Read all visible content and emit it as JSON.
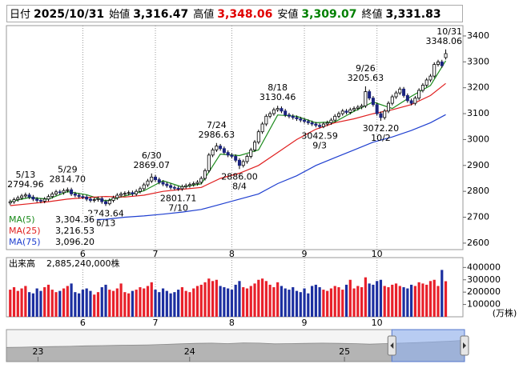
{
  "header": {
    "date_label": "日付",
    "date": "2025/10/31",
    "items": [
      {
        "label": "始値",
        "value": "3,316.47",
        "color": "#000000"
      },
      {
        "label": "高値",
        "value": "3,348.06",
        "color": "#e00000"
      },
      {
        "label": "安値",
        "value": "3,309.07",
        "color": "#008000"
      },
      {
        "label": "終値",
        "value": "3,331.83",
        "color": "#000000"
      }
    ]
  },
  "chart_data": [
    {
      "type": "candlestick",
      "up_color": "#ffffff",
      "down_color": "#1a237e",
      "xlim": [
        -1,
        118.5
      ],
      "ylim": [
        2575,
        3440
      ],
      "yticks": [
        2600,
        2700,
        2800,
        2900,
        3000,
        3100,
        3200,
        3300,
        3400
      ],
      "xticks": [
        {
          "value": 19,
          "label": "6"
        },
        {
          "value": 38,
          "label": "7"
        },
        {
          "value": 58,
          "label": "8"
        },
        {
          "value": 77,
          "label": "9"
        },
        {
          "value": 96,
          "label": "10"
        }
      ],
      "open": [
        2755,
        2760,
        2768,
        2775,
        2782,
        2786,
        2778,
        2770,
        2765,
        2762,
        2770,
        2780,
        2790,
        2798,
        2795,
        2803,
        2806,
        2790,
        2785,
        2780,
        2778,
        2770,
        2765,
        2768,
        2772,
        2760,
        2752,
        2765,
        2775,
        2785,
        2790,
        2792,
        2795,
        2790,
        2800,
        2810,
        2825,
        2840,
        2855,
        2845,
        2835,
        2828,
        2822,
        2815,
        2812,
        2810,
        2818,
        2822,
        2826,
        2830,
        2835,
        2850,
        2880,
        2940,
        2960,
        2975,
        2965,
        2950,
        2940,
        2935,
        2920,
        2900,
        2915,
        2935,
        2960,
        2990,
        3030,
        3060,
        3090,
        3100,
        3115,
        3120,
        3110,
        3095,
        3090,
        3085,
        3080,
        3075,
        3070,
        3065,
        3060,
        3055,
        3050,
        3060,
        3065,
        3075,
        3090,
        3100,
        3110,
        3105,
        3115,
        3120,
        3125,
        3130,
        3185,
        3160,
        3135,
        3100,
        3085,
        3110,
        3140,
        3165,
        3180,
        3195,
        3170,
        3150,
        3140,
        3160,
        3190,
        3210,
        3230,
        3245,
        3290,
        3300,
        3316.47
      ],
      "high": [
        2768,
        2776,
        2783,
        2790,
        2794.96,
        2794,
        2786,
        2778,
        2773,
        2778,
        2788,
        2798,
        2806,
        2806,
        2811,
        2814.7,
        2814,
        2798,
        2793,
        2788,
        2786,
        2778,
        2776,
        2780,
        2780,
        2768,
        2773,
        2783,
        2793,
        2798,
        2800,
        2803,
        2803,
        2808,
        2818,
        2833,
        2848,
        2869.07,
        2863,
        2853,
        2843,
        2836,
        2830,
        2823,
        2820,
        2826,
        2830,
        2834,
        2838,
        2843,
        2858,
        2888,
        2948,
        2968,
        2986.63,
        2983,
        2973,
        2958,
        2948,
        2943,
        2928,
        2923,
        2943,
        2968,
        2998,
        3038,
        3068,
        3098,
        3108,
        3123,
        3130.46,
        3128,
        3118,
        3103,
        3098,
        3093,
        3088,
        3083,
        3078,
        3073,
        3068,
        3063,
        3068,
        3073,
        3083,
        3098,
        3108,
        3118,
        3118,
        3123,
        3128,
        3133,
        3138,
        3205.63,
        3193,
        3168,
        3143,
        3108,
        3118,
        3148,
        3173,
        3188,
        3203,
        3203,
        3178,
        3158,
        3168,
        3198,
        3218,
        3238,
        3253,
        3298,
        3308,
        3308,
        3348.06
      ],
      "low": [
        2747,
        2752,
        2760,
        2767,
        2774,
        2770,
        2762,
        2757,
        2754,
        2754,
        2762,
        2772,
        2782,
        2787,
        2787,
        2795,
        2782,
        2777,
        2772,
        2770,
        2762,
        2757,
        2757,
        2760,
        2752,
        2743.64,
        2746,
        2757,
        2767,
        2777,
        2782,
        2784,
        2782,
        2782,
        2792,
        2802,
        2817,
        2832,
        2837,
        2827,
        2820,
        2814,
        2807,
        2804,
        2801.71,
        2802,
        2810,
        2814,
        2818,
        2822,
        2827,
        2842,
        2872,
        2932,
        2952,
        2957,
        2942,
        2932,
        2927,
        2912,
        2886,
        2892,
        2907,
        2927,
        2952,
        2982,
        3022,
        3052,
        3082,
        3092,
        3107,
        3102,
        3087,
        3082,
        3077,
        3072,
        3067,
        3062,
        3057,
        3052,
        3047,
        3042.59,
        3044,
        3052,
        3057,
        3067,
        3082,
        3092,
        3097,
        3097,
        3107,
        3112,
        3117,
        3122,
        3152,
        3127,
        3092,
        3072.2,
        3077,
        3102,
        3132,
        3157,
        3172,
        3162,
        3142,
        3132,
        3132,
        3152,
        3182,
        3202,
        3222,
        3237,
        3282,
        3277,
        3309.07
      ],
      "close": [
        2760,
        2768,
        2775,
        2782,
        2786,
        2778,
        2770,
        2765,
        2762,
        2770,
        2780,
        2790,
        2798,
        2795,
        2803,
        2806,
        2790,
        2785,
        2780,
        2778,
        2770,
        2765,
        2768,
        2772,
        2760,
        2752,
        2765,
        2775,
        2785,
        2790,
        2792,
        2795,
        2790,
        2800,
        2810,
        2825,
        2840,
        2855,
        2845,
        2835,
        2828,
        2822,
        2815,
        2812,
        2810,
        2818,
        2822,
        2826,
        2830,
        2835,
        2850,
        2880,
        2940,
        2960,
        2975,
        2965,
        2950,
        2940,
        2935,
        2920,
        2900,
        2915,
        2935,
        2960,
        2990,
        3030,
        3060,
        3090,
        3100,
        3115,
        3120,
        3110,
        3095,
        3090,
        3085,
        3080,
        3075,
        3070,
        3065,
        3060,
        3055,
        3050,
        3060,
        3065,
        3075,
        3090,
        3100,
        3110,
        3105,
        3115,
        3120,
        3125,
        3130,
        3185,
        3160,
        3135,
        3100,
        3085,
        3110,
        3140,
        3165,
        3180,
        3195,
        3170,
        3150,
        3140,
        3160,
        3190,
        3210,
        3230,
        3245,
        3290,
        3300,
        3285,
        3331.83
      ],
      "lines": [
        {
          "name": "MA(5)",
          "color": "#1a8a1a",
          "value_label": "3,304.36",
          "x": [
            0,
            5,
            10,
            15,
            20,
            25,
            30,
            35,
            40,
            45,
            50,
            55,
            60,
            65,
            70,
            75,
            80,
            85,
            90,
            95,
            100,
            105,
            110,
            114
          ],
          "values": [
            2760,
            2776,
            2770,
            2799,
            2787,
            2763,
            2782,
            2802,
            2841,
            2817,
            2829,
            2944,
            2938,
            2960,
            3095,
            3090,
            3065,
            3068,
            3109,
            3145,
            3120,
            3167,
            3209,
            3304.36
          ]
        },
        {
          "name": "MA(25)",
          "color": "#e02020",
          "value_label": "3,216.53",
          "x": [
            0,
            5,
            10,
            15,
            20,
            25,
            30,
            35,
            40,
            45,
            50,
            55,
            60,
            65,
            70,
            75,
            80,
            85,
            90,
            95,
            100,
            105,
            110,
            114
          ],
          "values": [
            2745,
            2752,
            2760,
            2770,
            2776,
            2780,
            2778,
            2785,
            2800,
            2808,
            2815,
            2850,
            2870,
            2900,
            2950,
            3000,
            3040,
            3065,
            3080,
            3100,
            3115,
            3135,
            3170,
            3216.53
          ]
        },
        {
          "name": "MA(75)",
          "color": "#1f3fd0",
          "value_label": "3,096.20",
          "x": [
            20,
            25,
            30,
            35,
            40,
            45,
            50,
            55,
            60,
            65,
            70,
            75,
            80,
            85,
            90,
            95,
            100,
            105,
            110,
            114
          ],
          "values": [
            2690,
            2692,
            2700,
            2705,
            2712,
            2720,
            2730,
            2750,
            2770,
            2790,
            2830,
            2860,
            2900,
            2930,
            2960,
            2990,
            3010,
            3035,
            3065,
            3096.2
          ]
        }
      ],
      "annotations": [
        {
          "index": 4,
          "date": "5/13",
          "label": "2794.96",
          "kind": "high"
        },
        {
          "index": 15,
          "date": "5/29",
          "label": "2814.70",
          "kind": "high"
        },
        {
          "index": 25,
          "date": "6/13",
          "label": "2743.64",
          "kind": "low"
        },
        {
          "index": 37,
          "date": "6/30",
          "label": "2869.07",
          "kind": "high"
        },
        {
          "index": 44,
          "date": "7/10",
          "label": "2801.71",
          "kind": "low"
        },
        {
          "index": 54,
          "date": "7/24",
          "label": "2986.63",
          "kind": "high"
        },
        {
          "index": 60,
          "date": "8/4",
          "label": "2886.00",
          "kind": "low"
        },
        {
          "index": 70,
          "date": "8/18",
          "label": "3130.46",
          "kind": "high"
        },
        {
          "index": 81,
          "date": "9/3",
          "label": "3042.59",
          "kind": "low"
        },
        {
          "index": 93,
          "date": "9/26",
          "label": "3205.63",
          "kind": "high"
        },
        {
          "index": 97,
          "date": "10/2",
          "label": "3072.20",
          "kind": "low"
        },
        {
          "index": 114,
          "date": "10/31",
          "label": "3348.06",
          "kind": "high"
        }
      ]
    },
    {
      "type": "bar",
      "title": "出来高",
      "subtitle": "2,885,240,000株",
      "ylabel": "(万株)",
      "up_color": "#e8202a",
      "down_color": "#1c2fa0",
      "xlim": [
        -1,
        118.5
      ],
      "ylim": [
        0,
        480000
      ],
      "yticks": [
        100000,
        200000,
        300000,
        400000
      ],
      "xticks": [
        {
          "value": 19,
          "label": "6"
        },
        {
          "value": 38,
          "label": "7"
        },
        {
          "value": 58,
          "label": "8"
        },
        {
          "value": 77,
          "label": "9"
        },
        {
          "value": 96,
          "label": "10"
        }
      ],
      "values": [
        220000,
        240000,
        210000,
        230000,
        250000,
        200000,
        190000,
        230000,
        210000,
        240000,
        260000,
        220000,
        200000,
        210000,
        230000,
        250000,
        270000,
        200000,
        190000,
        220000,
        230000,
        210000,
        180000,
        200000,
        240000,
        260000,
        220000,
        210000,
        230000,
        270000,
        200000,
        190000,
        210000,
        220000,
        240000,
        230000,
        250000,
        280000,
        220000,
        200000,
        230000,
        210000,
        190000,
        200000,
        220000,
        240000,
        210000,
        200000,
        230000,
        250000,
        260000,
        280000,
        310000,
        290000,
        300000,
        250000,
        240000,
        230000,
        220000,
        260000,
        290000,
        240000,
        230000,
        250000,
        270000,
        300000,
        310000,
        290000,
        260000,
        240000,
        280000,
        250000,
        230000,
        220000,
        240000,
        210000,
        200000,
        230000,
        190000,
        250000,
        260000,
        240000,
        220000,
        210000,
        230000,
        250000,
        240000,
        220000,
        260000,
        300000,
        230000,
        250000,
        240000,
        320000,
        270000,
        260000,
        290000,
        300000,
        250000,
        240000,
        260000,
        270000,
        250000,
        240000,
        230000,
        260000,
        250000,
        280000,
        270000,
        260000,
        290000,
        300000,
        250000,
        380000,
        288524
      ]
    },
    {
      "type": "area",
      "color": "#b4b4b4",
      "window_color": "#8fb0f0",
      "xlim": [
        0,
        29
      ],
      "ylim": [
        -1000,
        5500
      ],
      "window": [
        24.4,
        29
      ],
      "xticks": [
        {
          "value": 2,
          "label": "23"
        },
        {
          "value": 11.6,
          "label": "24"
        },
        {
          "value": 21.4,
          "label": "25"
        }
      ],
      "values": [
        1870,
        1930,
        2000,
        2050,
        2100,
        2200,
        2250,
        2300,
        2350,
        2400,
        2500,
        2600,
        2700,
        2750,
        2650,
        2800,
        2750,
        2600,
        2650,
        2700,
        2750,
        2700,
        2650,
        2550,
        2650,
        2750,
        2850,
        3000,
        3150,
        3330
      ]
    }
  ]
}
